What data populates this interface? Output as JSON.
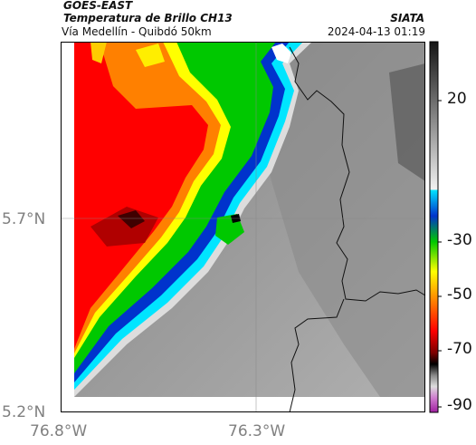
{
  "header": {
    "satellite": "GOES-EAST",
    "product": "Temperatura de Brillo CH13",
    "organization": "SIATA",
    "region": "Vía Medellín - Quibdó 50km",
    "datetime": "2024-04-13 01:19"
  },
  "map": {
    "lat_labels": [
      "5.7°N",
      "5.2°N"
    ],
    "lon_labels": [
      "76.8°W",
      "76.3°W"
    ],
    "gridlines": true,
    "features": [
      "coastline",
      "department boundary",
      "cloud-top brightness temperature field"
    ]
  },
  "colorbar": {
    "ticks": [
      "20",
      "-30",
      "-50",
      "-70",
      "-90"
    ],
    "range": [
      -95,
      35
    ],
    "colors": {
      "warm_gray_light": "#f2f2f2",
      "warm_gray_dark": "#1a1a1a",
      "cyan": "#00e5ff",
      "blue": "#0033cc",
      "green": "#00c800",
      "yellow": "#ffff00",
      "orange": "#ff8000",
      "red": "#ff0000",
      "dark_red": "#7a0000",
      "black": "#000000",
      "magenta": "#c040c0"
    }
  }
}
